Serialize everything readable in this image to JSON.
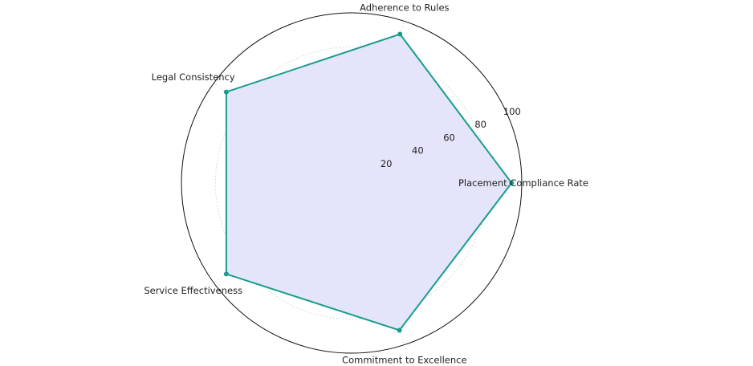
{
  "chart_data": {
    "type": "radar",
    "title": "",
    "categories": [
      "Placement Compliance Rate",
      "Adherence to Rules",
      "Legal Consistency",
      "Service Effectiveness",
      "Commitment to Excellence"
    ],
    "series": [
      {
        "values": [
          94,
          92,
          91,
          91,
          91
        ]
      }
    ],
    "rmax": 100,
    "ticks": [
      20,
      40,
      60,
      80,
      100
    ],
    "tick_labels": [
      "20",
      "40",
      "60",
      "80",
      "100"
    ],
    "grid": true,
    "colors": {
      "line": "#169e8a",
      "fill": "#e3e3fb",
      "marker": "#169e8a",
      "outer": "#111111",
      "grid": "#c8c8c8"
    }
  }
}
